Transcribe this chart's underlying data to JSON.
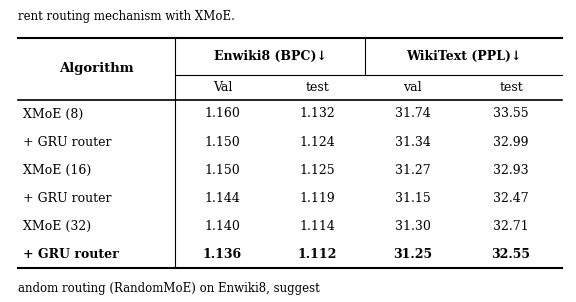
{
  "header_top": [
    "",
    "Enwiki8 (BPC)↓",
    "WikiText (PPL)↓"
  ],
  "header_sub": [
    "Algorithm",
    "Val",
    "test",
    "val",
    "test"
  ],
  "rows": [
    [
      "XMoE (8)",
      "1.160",
      "1.132",
      "31.74",
      "33.55",
      false
    ],
    [
      "+ GRU router",
      "1.150",
      "1.124",
      "31.34",
      "32.99",
      false
    ],
    [
      "XMoE (16)",
      "1.150",
      "1.125",
      "31.27",
      "32.93",
      false
    ],
    [
      "+ GRU router",
      "1.144",
      "1.119",
      "31.15",
      "32.47",
      false
    ],
    [
      "XMoE (32)",
      "1.140",
      "1.114",
      "31.30",
      "32.71",
      false
    ],
    [
      "+ GRU router",
      "1.136",
      "1.112",
      "31.25",
      "32.55",
      true
    ]
  ],
  "top_text": "rent routing mechanism with XMoE.",
  "bottom_text": "andom routing (RandomMoE) on Enwiki8, suggest",
  "fig_width": 5.76,
  "fig_height": 3.02,
  "dpi": 100
}
